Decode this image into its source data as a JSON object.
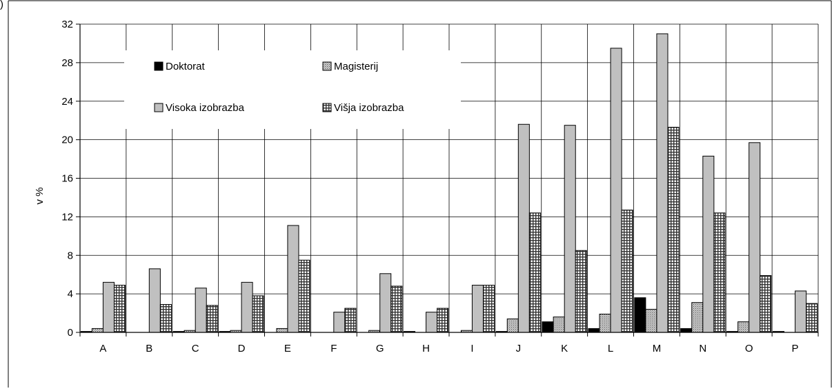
{
  "chart_data": {
    "type": "bar",
    "title": "",
    "xlabel": "",
    "ylabel": "v %",
    "ylim": [
      0,
      32
    ],
    "yticks": [
      0,
      4,
      8,
      12,
      16,
      20,
      24,
      28,
      32
    ],
    "grid": true,
    "legend_position": "top-left",
    "corner_label": ")",
    "categories": [
      "A",
      "B",
      "C",
      "D",
      "E",
      "F",
      "G",
      "H",
      "I",
      "J",
      "K",
      "L",
      "M",
      "N",
      "O",
      "P"
    ],
    "series": [
      {
        "name": "Doktorat",
        "pattern": "solid-black",
        "values": [
          0.1,
          0,
          0.1,
          0.1,
          0,
          0,
          0,
          0.1,
          0,
          0.1,
          1.1,
          0.4,
          3.6,
          0.4,
          0.1,
          0.1
        ]
      },
      {
        "name": "Magisterij",
        "pattern": "dotted-gray",
        "values": [
          0.4,
          0,
          0.2,
          0.2,
          0.4,
          0,
          0.2,
          0,
          0.2,
          1.4,
          1.6,
          1.9,
          2.4,
          3.1,
          1.1,
          0
        ]
      },
      {
        "name": "Visoka izobrazba",
        "pattern": "light-gray",
        "values": [
          5.2,
          6.6,
          4.6,
          5.2,
          11.1,
          2.1,
          6.1,
          2.1,
          4.9,
          21.6,
          21.5,
          29.5,
          31.0,
          18.3,
          19.7,
          4.3
        ]
      },
      {
        "name": "Višja izobrazba",
        "pattern": "crosshatch",
        "values": [
          4.9,
          2.9,
          2.8,
          3.8,
          7.5,
          2.5,
          4.8,
          2.5,
          4.9,
          12.4,
          8.5,
          12.7,
          21.3,
          12.4,
          5.9,
          3.0
        ]
      }
    ],
    "colors": {
      "axis": "#000000",
      "grid": "#000000",
      "bar_light": "#c0c0c0",
      "bar_dark": "#000000"
    }
  }
}
